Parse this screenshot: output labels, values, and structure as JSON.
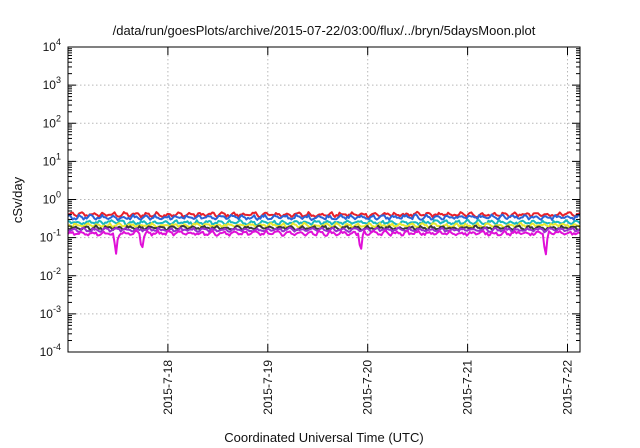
{
  "chart_data": {
    "type": "line",
    "title": "/data/run/goesPlots/archive/2015-07-22/03:00/flux/../bryn/5daysMoon.plot",
    "xlabel": "Coordinated Universal Time (UTC)",
    "ylabel": "cSv/day",
    "y_scale": "log",
    "ylim": [
      0.0001,
      10000
    ],
    "x_start": "2015-07-17T00:00",
    "x_end": "2015-07-22T03:00",
    "xlim": [
      0,
      5.125
    ],
    "grid": true,
    "legend": "none",
    "yticks": [
      {
        "value": 0.0001,
        "base": "10",
        "exp": "-4"
      },
      {
        "value": 0.001,
        "base": "10",
        "exp": "-3"
      },
      {
        "value": 0.01,
        "base": "10",
        "exp": "-2"
      },
      {
        "value": 0.1,
        "base": "10",
        "exp": "-1"
      },
      {
        "value": 1,
        "base": "10",
        "exp": "0"
      },
      {
        "value": 10,
        "base": "10",
        "exp": "1"
      },
      {
        "value": 100,
        "base": "10",
        "exp": "2"
      },
      {
        "value": 1000,
        "base": "10",
        "exp": "3"
      },
      {
        "value": 10000,
        "base": "10",
        "exp": "4"
      }
    ],
    "xticks": [
      {
        "value": 1,
        "label": "2015-7-18"
      },
      {
        "value": 2,
        "label": "2015-7-19"
      },
      {
        "value": 3,
        "label": "2015-7-20"
      },
      {
        "value": 4,
        "label": "2015-7-21"
      },
      {
        "value": 5,
        "label": "2015-7-22"
      }
    ],
    "series": [
      {
        "color": "#e8202a",
        "level": 0.4,
        "amp": 0.22,
        "dips": []
      },
      {
        "color": "#2a64d8",
        "level": 0.34,
        "amp": 0.22,
        "dips": []
      },
      {
        "color": "#18b8c0",
        "level": 0.25,
        "amp": 0.2,
        "dips": []
      },
      {
        "color": "#e8e830",
        "level": 0.21,
        "amp": 0.18,
        "dips": []
      },
      {
        "color": "#3a3a3a",
        "level": 0.18,
        "amp": 0.18,
        "dips": []
      },
      {
        "color": "#9a2fd0",
        "level": 0.16,
        "amp": 0.18,
        "dips": []
      },
      {
        "color": "#e010d8",
        "level": 0.13,
        "amp": 0.2,
        "dips": [
          {
            "x": 0.48,
            "y": 0.035
          },
          {
            "x": 0.74,
            "y": 0.045
          },
          {
            "x": 2.93,
            "y": 0.04
          },
          {
            "x": 4.78,
            "y": 0.03
          }
        ]
      }
    ]
  }
}
